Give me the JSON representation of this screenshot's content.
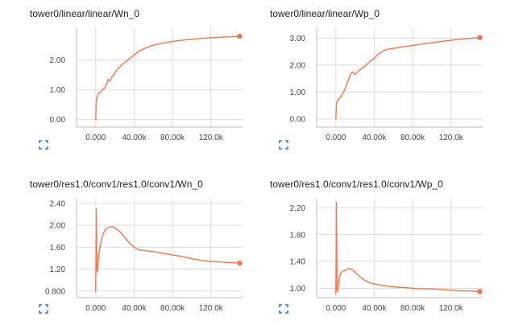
{
  "theme": {
    "series_color": "#f4754a",
    "icon_color": "#2f7bd6"
  },
  "panels": [
    {
      "title": "tower0/linear/linear/Wn_0",
      "expand_icon": "expand-icon"
    },
    {
      "title": "tower0/linear/linear/Wp_0",
      "expand_icon": "expand-icon"
    },
    {
      "title": "tower0/res1.0/conv1/res1.0/conv1/Wn_0",
      "expand_icon": "expand-icon"
    },
    {
      "title": "tower0/res1.0/conv1/res1.0/conv1/Wp_0",
      "expand_icon": "expand-icon"
    }
  ],
  "chart_data": [
    {
      "type": "line",
      "title": "tower0/linear/linear/Wn_0",
      "xlabel": "",
      "ylabel": "",
      "xlim": [
        -20000,
        153000
      ],
      "ylim": [
        -0.25,
        3.1
      ],
      "x_ticks": [
        0,
        40000,
        80000,
        120000
      ],
      "x_tick_labels": [
        "0.000",
        "40.00k",
        "80.00k",
        "120.0k"
      ],
      "y_ticks": [
        0,
        1,
        2
      ],
      "y_tick_labels": [
        "0.00",
        "1.00",
        "2.00"
      ],
      "grid": true,
      "series": [
        {
          "x": [
            0,
            500,
            1000,
            2000,
            3000,
            5000,
            7000,
            9000,
            11000,
            13000,
            15000,
            17000,
            19000,
            21000,
            23000,
            25000,
            27000,
            29000,
            31000,
            33000,
            35000,
            37000,
            39000,
            41000,
            43000,
            45000,
            50000,
            55000,
            60000,
            70000,
            80000,
            90000,
            100000,
            110000,
            120000,
            130000,
            140000,
            150000
          ],
          "values": [
            0.0,
            0.55,
            0.72,
            0.8,
            0.9,
            0.92,
            1.0,
            1.05,
            1.18,
            1.35,
            1.3,
            1.45,
            1.5,
            1.62,
            1.72,
            1.75,
            1.85,
            1.88,
            1.95,
            1.98,
            2.05,
            2.1,
            2.15,
            2.2,
            2.25,
            2.3,
            2.38,
            2.45,
            2.5,
            2.57,
            2.63,
            2.67,
            2.7,
            2.73,
            2.75,
            2.77,
            2.78,
            2.8
          ],
          "end_marker": true
        }
      ]
    },
    {
      "type": "line",
      "title": "tower0/linear/linear/Wp_0",
      "xlabel": "",
      "ylabel": "",
      "xlim": [
        -20000,
        153000
      ],
      "ylim": [
        -0.3,
        3.4
      ],
      "x_ticks": [
        0,
        40000,
        80000,
        120000
      ],
      "x_tick_labels": [
        "0.000",
        "40.00k",
        "80.00k",
        "120.0k"
      ],
      "y_ticks": [
        0,
        1,
        2,
        3
      ],
      "y_tick_labels": [
        "0.00",
        "1.00",
        "2.00",
        "3.00"
      ],
      "grid": true,
      "series": [
        {
          "x": [
            0,
            500,
            1000,
            2000,
            4000,
            6000,
            8000,
            10000,
            12000,
            14000,
            16000,
            18000,
            20000,
            22000,
            24000,
            26000,
            28000,
            30000,
            33000,
            36000,
            40000,
            44000,
            48000,
            52000,
            56000,
            60000,
            70000,
            80000,
            90000,
            100000,
            110000,
            120000,
            130000,
            140000,
            150000
          ],
          "values": [
            0.0,
            0.45,
            0.62,
            0.7,
            0.78,
            0.88,
            1.0,
            1.15,
            1.35,
            1.55,
            1.7,
            1.75,
            1.65,
            1.72,
            1.8,
            1.85,
            1.9,
            1.95,
            2.05,
            2.15,
            2.25,
            2.4,
            2.5,
            2.57,
            2.6,
            2.62,
            2.68,
            2.73,
            2.78,
            2.83,
            2.88,
            2.92,
            2.96,
            2.99,
            3.02
          ],
          "end_marker": true
        }
      ]
    },
    {
      "type": "line",
      "title": "tower0/res1.0/conv1/res1.0/conv1/Wn_0",
      "xlabel": "",
      "ylabel": "",
      "xlim": [
        -20000,
        153000
      ],
      "ylim": [
        0.68,
        2.5
      ],
      "x_ticks": [
        0,
        40000,
        80000,
        120000
      ],
      "x_tick_labels": [
        "0.000",
        "40.00k",
        "80.00k",
        "120.0k"
      ],
      "y_ticks": [
        0.8,
        1.2,
        1.6,
        2.0,
        2.4
      ],
      "y_tick_labels": [
        "0.800",
        "1.20",
        "1.60",
        "2.00",
        "2.40"
      ],
      "grid": true,
      "series": [
        {
          "x": [
            0,
            300,
            600,
            900,
            1200,
            1600,
            2000,
            2600,
            3200,
            4000,
            5000,
            6000,
            8000,
            10000,
            12000,
            15000,
            18000,
            21000,
            24000,
            27000,
            30000,
            33000,
            36000,
            40000,
            45000,
            50000,
            55000,
            60000,
            70000,
            80000,
            90000,
            100000,
            110000,
            120000,
            130000,
            140000,
            150000
          ],
          "values": [
            0.8,
            1.6,
            2.3,
            1.7,
            1.25,
            1.15,
            1.2,
            1.35,
            1.45,
            1.55,
            1.65,
            1.75,
            1.85,
            1.92,
            1.95,
            1.97,
            1.97,
            1.94,
            1.9,
            1.85,
            1.78,
            1.72,
            1.66,
            1.6,
            1.55,
            1.54,
            1.53,
            1.52,
            1.49,
            1.46,
            1.43,
            1.39,
            1.36,
            1.34,
            1.33,
            1.32,
            1.31
          ],
          "end_marker": true
        }
      ]
    },
    {
      "type": "line",
      "title": "tower0/res1.0/conv1/res1.0/conv1/Wp_0",
      "xlabel": "",
      "ylabel": "",
      "xlim": [
        -20000,
        153000
      ],
      "ylim": [
        0.86,
        2.35
      ],
      "x_ticks": [
        0,
        40000,
        80000,
        120000
      ],
      "x_tick_labels": [
        "0.000",
        "40.00k",
        "80.00k",
        "120.0k"
      ],
      "y_ticks": [
        1.0,
        1.4,
        1.8,
        2.2
      ],
      "y_tick_labels": [
        "1.00",
        "1.40",
        "1.80",
        "2.20"
      ],
      "grid": true,
      "series": [
        {
          "x": [
            0,
            300,
            600,
            900,
            1200,
            1600,
            2000,
            2600,
            3200,
            4000,
            5000,
            6000,
            8000,
            10000,
            12000,
            14000,
            16000,
            18000,
            20000,
            23000,
            26000,
            30000,
            34000,
            38000,
            42000,
            46000,
            50000,
            55000,
            60000,
            70000,
            80000,
            90000,
            100000,
            110000,
            120000,
            130000,
            140000,
            150000
          ],
          "values": [
            0.92,
            1.5,
            2.28,
            1.6,
            1.0,
            0.95,
            0.98,
            1.05,
            1.12,
            1.18,
            1.22,
            1.24,
            1.26,
            1.27,
            1.28,
            1.3,
            1.28,
            1.27,
            1.24,
            1.2,
            1.16,
            1.12,
            1.09,
            1.07,
            1.06,
            1.05,
            1.04,
            1.03,
            1.02,
            1.01,
            1.0,
            0.99,
            0.99,
            0.98,
            0.97,
            0.96,
            0.96,
            0.95
          ],
          "end_marker": true
        }
      ]
    }
  ]
}
